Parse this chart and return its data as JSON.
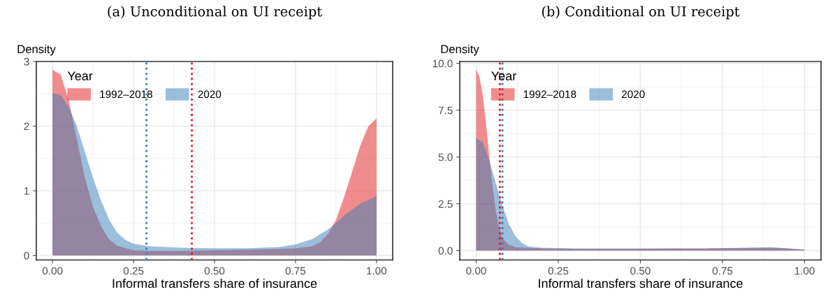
{
  "chart_data": [
    {
      "type": "area",
      "title": "(a) Unconditional on UI receipt",
      "ylabel": "Density",
      "xlabel": "Informal transfers share of insurance",
      "legend_title": "Year",
      "legend": "top left",
      "grid": true,
      "xlim": [
        -0.05,
        1.05
      ],
      "ylim": [
        -0.07,
        3.0
      ],
      "xticks": [
        {
          "value": 0,
          "label": "0.00"
        },
        {
          "value": 0.25,
          "label": "0.25"
        },
        {
          "value": 0.5,
          "label": "0.50"
        },
        {
          "value": 0.75,
          "label": "0.75"
        },
        {
          "value": 1,
          "label": "1.00"
        }
      ],
      "yticks": [
        0,
        1,
        2,
        3
      ],
      "series": [
        {
          "name": "1992–2018",
          "color": "#e41a1c",
          "x": [
            0,
            0.025,
            0.05,
            0.075,
            0.1,
            0.125,
            0.15,
            0.175,
            0.2,
            0.25,
            0.3,
            0.4,
            0.5,
            0.6,
            0.7,
            0.75,
            0.8,
            0.825,
            0.85,
            0.875,
            0.9,
            0.925,
            0.95,
            0.975,
            1.0
          ],
          "values": [
            2.87,
            2.8,
            2.4,
            1.8,
            1.2,
            0.75,
            0.45,
            0.25,
            0.15,
            0.08,
            0.07,
            0.07,
            0.08,
            0.09,
            0.1,
            0.11,
            0.14,
            0.2,
            0.33,
            0.55,
            0.9,
            1.3,
            1.7,
            2.0,
            2.12
          ]
        },
        {
          "name": "2020",
          "color": "#377eb8",
          "x": [
            0,
            0.025,
            0.05,
            0.075,
            0.1,
            0.125,
            0.15,
            0.175,
            0.2,
            0.225,
            0.25,
            0.3,
            0.4,
            0.5,
            0.6,
            0.7,
            0.75,
            0.8,
            0.85,
            0.875,
            0.9,
            0.95,
            1.0
          ],
          "values": [
            2.51,
            2.48,
            2.3,
            2.0,
            1.6,
            1.2,
            0.85,
            0.55,
            0.35,
            0.24,
            0.18,
            0.14,
            0.12,
            0.11,
            0.11,
            0.13,
            0.17,
            0.25,
            0.4,
            0.5,
            0.62,
            0.8,
            0.92
          ]
        }
      ],
      "ref_lines": [
        {
          "axis": "x",
          "value": 0.29,
          "color": "#377eb8",
          "line_style": "dotted"
        },
        {
          "axis": "x",
          "value": 0.43,
          "color": "#e41a1c",
          "line_style": "dotted"
        }
      ]
    },
    {
      "type": "area",
      "title": "(b) Conditional on UI receipt",
      "ylabel": "Density",
      "xlabel": "Informal transfers share of insurance",
      "legend_title": "Year",
      "legend": "top left",
      "grid": true,
      "xlim": [
        -0.05,
        1.05
      ],
      "ylim": [
        -0.5,
        10.1
      ],
      "xticks": [
        {
          "value": 0,
          "label": "0.00"
        },
        {
          "value": 0.25,
          "label": "0.25"
        },
        {
          "value": 0.5,
          "label": "0.50"
        },
        {
          "value": 0.75,
          "label": "0.75"
        },
        {
          "value": 1,
          "label": "1.00"
        }
      ],
      "yticks": [
        {
          "value": 0,
          "label": "0.0"
        },
        {
          "value": 2.5,
          "label": "2.5"
        },
        {
          "value": 5,
          "label": "5.0"
        },
        {
          "value": 7.5,
          "label": "7.5"
        },
        {
          "value": 10,
          "label": "10.0"
        }
      ],
      "series": [
        {
          "name": "1992–2018",
          "color": "#e41a1c",
          "x": [
            0,
            0.01,
            0.02,
            0.03,
            0.04,
            0.05,
            0.06,
            0.07,
            0.08,
            0.1,
            0.12,
            0.2,
            0.3,
            0.4,
            0.5,
            0.6,
            0.7,
            0.8,
            0.9,
            0.95,
            1.0
          ],
          "values": [
            9.65,
            9.3,
            8.3,
            6.8,
            5.0,
            3.4,
            2.1,
            1.2,
            0.65,
            0.3,
            0.18,
            0.12,
            0.1,
            0.1,
            0.1,
            0.12,
            0.12,
            0.13,
            0.15,
            0.12,
            0.05
          ]
        },
        {
          "name": "2020",
          "color": "#377eb8",
          "x": [
            0,
            0.02,
            0.04,
            0.06,
            0.08,
            0.1,
            0.12,
            0.14,
            0.16,
            0.2,
            0.3,
            0.5,
            0.7,
            0.9,
            1.0
          ],
          "values": [
            6.0,
            5.8,
            4.8,
            3.6,
            2.4,
            1.4,
            0.75,
            0.4,
            0.22,
            0.15,
            0.12,
            0.12,
            0.11,
            0.18,
            0.05
          ]
        }
      ],
      "ref_lines": [
        {
          "axis": "x",
          "value": 0.072,
          "color": "#e41a1c",
          "line_style": "dotted"
        },
        {
          "axis": "x",
          "value": 0.08,
          "color": "#377eb8",
          "line_style": "dotted"
        }
      ]
    }
  ]
}
